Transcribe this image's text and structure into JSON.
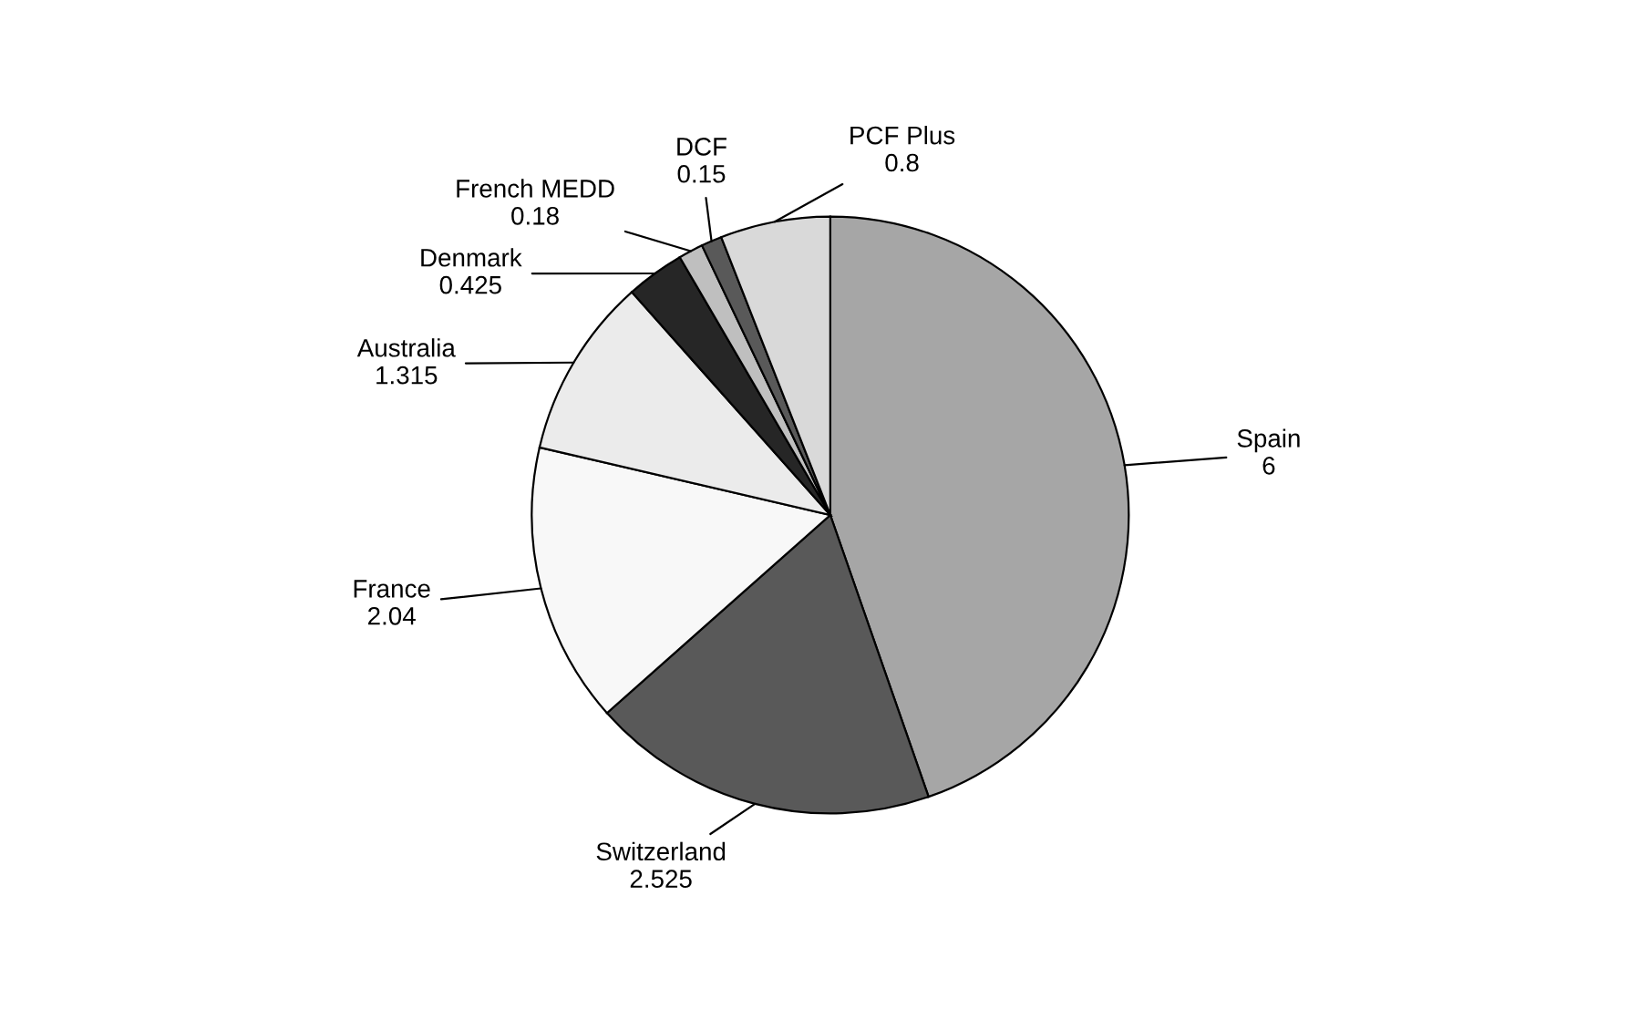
{
  "chart_data": {
    "type": "pie",
    "categories": [
      "Spain",
      "Switzerland",
      "France",
      "Australia",
      "Denmark",
      "French MEDD",
      "DCF",
      "PCF Plus"
    ],
    "values": [
      6,
      2.525,
      2.04,
      1.315,
      0.425,
      0.18,
      0.15,
      0.8
    ],
    "colors": [
      "#a6a6a6",
      "#595959",
      "#f8f8f8",
      "#ebebeb",
      "#262626",
      "#bfbfbf",
      "#595959",
      "#d9d9d9"
    ],
    "data_labels": true,
    "legend": false
  }
}
